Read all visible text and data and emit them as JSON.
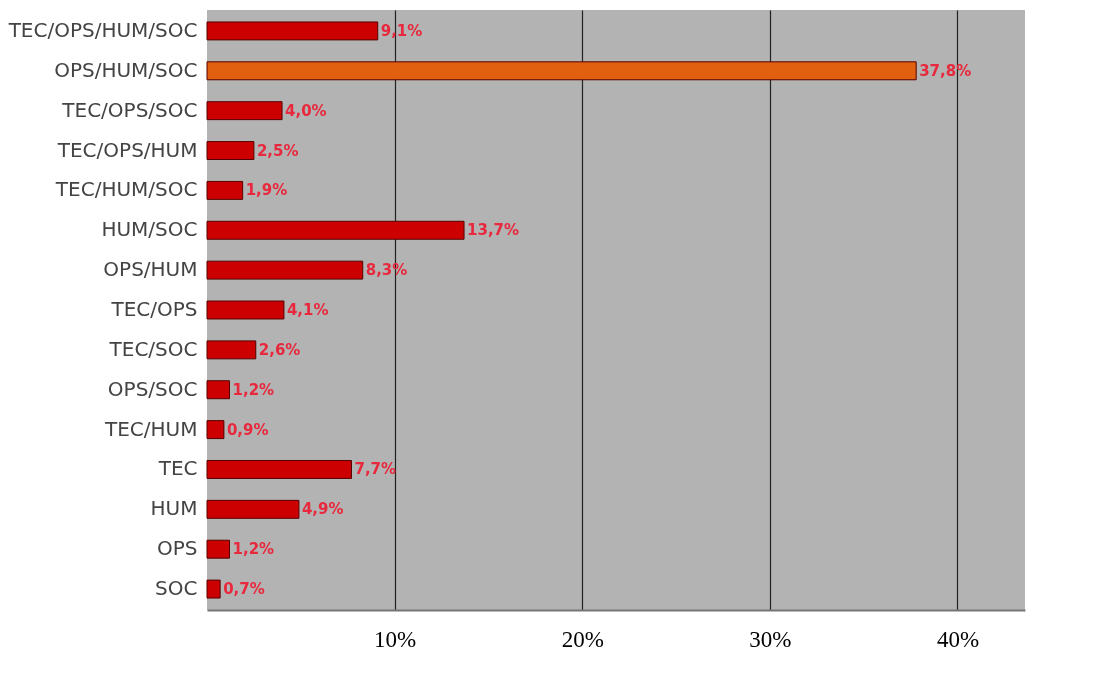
{
  "chart_data": {
    "type": "bar",
    "orientation": "horizontal",
    "categories": [
      "TEC/OPS/HUM/SOC",
      "OPS/HUM/SOC",
      "TEC/OPS/SOC",
      "TEC/OPS/HUM",
      "TEC/HUM/SOC",
      "HUM/SOC",
      "OPS/HUM",
      "TEC/OPS",
      "TEC/SOC",
      "OPS/SOC",
      "TEC/HUM",
      "TEC",
      "HUM",
      "OPS",
      "SOC"
    ],
    "values": [
      9.1,
      37.8,
      4.0,
      2.5,
      1.9,
      13.7,
      8.3,
      4.1,
      2.6,
      1.2,
      0.9,
      7.7,
      4.9,
      1.2,
      0.7
    ],
    "value_labels": [
      "9,1%",
      "37,8%",
      "4,0%",
      "2,5%",
      "1,9%",
      "13,7%",
      "8,3%",
      "4,1%",
      "2,6%",
      "1,2%",
      "0,9%",
      "7,7%",
      "4,9%",
      "1,2%",
      "0,7%"
    ],
    "colors": [
      "#cc0000",
      "#e06010",
      "#cc0000",
      "#cc0000",
      "#cc0000",
      "#cc0000",
      "#cc0000",
      "#cc0000",
      "#cc0000",
      "#cc0000",
      "#cc0000",
      "#cc0000",
      "#cc0000",
      "#cc0000",
      "#cc0000"
    ],
    "xlim": [
      0,
      43.6
    ],
    "xticks": [
      {
        "value": 10,
        "label": "10%"
      },
      {
        "value": 20,
        "label": "20%"
      },
      {
        "value": 30,
        "label": "30%"
      },
      {
        "value": 40,
        "label": "40%"
      }
    ],
    "grid": "x"
  }
}
